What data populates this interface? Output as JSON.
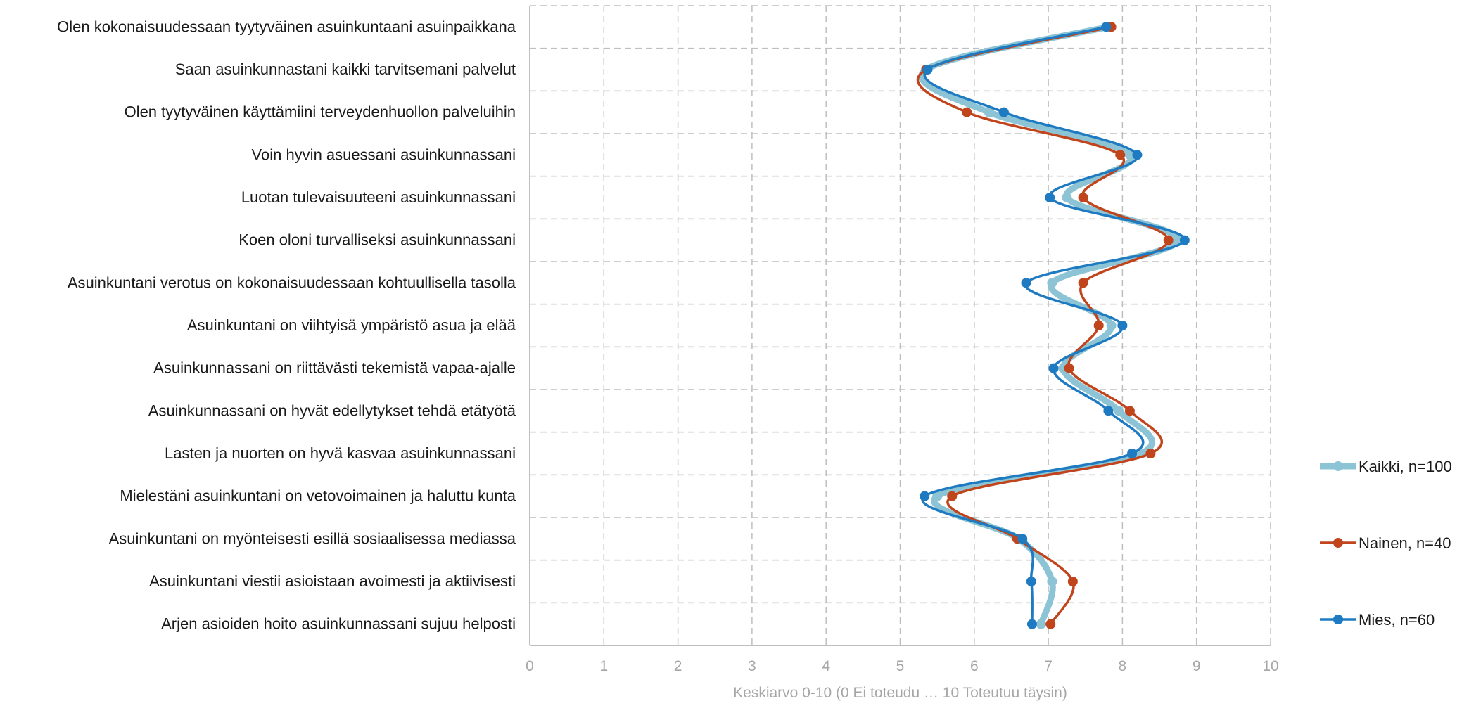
{
  "chart_data": {
    "type": "line",
    "orientation": "horizontal",
    "xlabel": "Keskiarvo 0-10 (0 Ei toteudu … 10 Toteutuu täysin)",
    "xlim": [
      0,
      10
    ],
    "xticks": [
      "0",
      "1",
      "2",
      "3",
      "4",
      "5",
      "6",
      "7",
      "8",
      "9",
      "10"
    ],
    "grid": true,
    "legend_position": "right",
    "categories": [
      "Olen kokonaisuudessaan tyytyväinen asuinkuntaani asuinpaikkana",
      "Saan asuinkunnastani kaikki tarvitsemani palvelut",
      "Olen tyytyväinen käyttämiini terveydenhuollon palveluihin",
      "Voin hyvin asuessani asuinkunnassani",
      "Luotan tulevaisuuteeni asuinkunnassani",
      "Koen oloni turvalliseksi asuinkunnassani",
      "Asuinkuntani verotus on kokonaisuudessaan kohtuullisella tasolla",
      "Asuinkuntani on viihtyisä ympäristö asua ja elää",
      "Asuinkunnassani on riittävästi tekemistä vapaa-ajalle",
      "Asuinkunnassani on hyvät edellytykset tehdä etätyötä",
      "Lasten ja nuorten on hyvä kasvaa asuinkunnassani",
      "Mielestäni asuinkuntani on vetovoimainen ja haluttu kunta",
      "Asuinkuntani on myönteisesti esillä sosiaalisessa mediassa",
      "Asuinkuntani viestii asioistaan avoimesti ja aktiivisesti",
      "Arjen asioiden hoito asuinkunnassani sujuu helposti"
    ],
    "series": [
      {
        "name": "Kaikki, n=100",
        "color": "#8cc4d6",
        "values": [
          7.8,
          5.35,
          6.2,
          8.1,
          7.25,
          8.75,
          7.05,
          7.85,
          7.2,
          7.95,
          8.25,
          5.5,
          6.6,
          7.05,
          6.9
        ]
      },
      {
        "name": "Nainen, n=40",
        "color": "#c0441c",
        "values": [
          7.85,
          5.35,
          5.9,
          7.97,
          7.47,
          8.62,
          7.47,
          7.68,
          7.28,
          8.1,
          8.38,
          5.7,
          6.58,
          7.33,
          7.03
        ]
      },
      {
        "name": "Mies, n=60",
        "color": "#1f7bc1",
        "values": [
          7.78,
          5.37,
          6.4,
          8.2,
          7.02,
          8.84,
          6.7,
          8.0,
          7.07,
          7.81,
          8.13,
          5.33,
          6.65,
          6.77,
          6.78
        ]
      }
    ]
  }
}
